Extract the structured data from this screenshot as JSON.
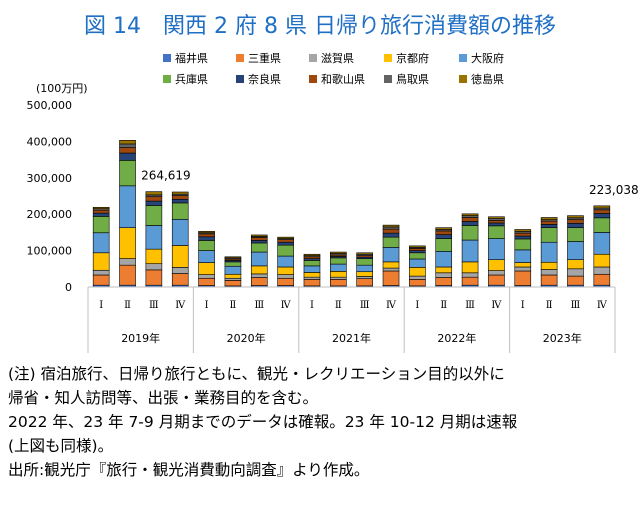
{
  "title": "図 14　関西 2 府 8 県 日帰り旅行消費額の推移",
  "chart_data": {
    "type": "bar",
    "stacked": true,
    "unit_label": "(100万円)",
    "ylim": [
      0,
      500000
    ],
    "yticks": [
      "0",
      "100,000",
      "200,000",
      "300,000",
      "400,000",
      "500,000"
    ],
    "grid": false,
    "legend_position": "top",
    "quarter_labels": [
      "Ⅰ",
      "Ⅱ",
      "Ⅲ",
      "Ⅳ",
      "Ⅰ",
      "Ⅱ",
      "Ⅲ",
      "Ⅳ",
      "Ⅰ",
      "Ⅱ",
      "Ⅲ",
      "Ⅳ",
      "Ⅰ",
      "Ⅱ",
      "Ⅲ",
      "Ⅳ",
      "Ⅰ",
      "Ⅱ",
      "Ⅲ",
      "Ⅳ"
    ],
    "year_labels": [
      "2019年",
      "2020年",
      "2021年",
      "2022年",
      "2023年"
    ],
    "annotations": [
      {
        "bar_index": 2,
        "text": "264,619"
      },
      {
        "bar_index": 19,
        "text": "223,038"
      }
    ],
    "series": [
      {
        "name": "福井県",
        "color": "#4472c4",
        "values": [
          5000,
          5000,
          5000,
          5000,
          4000,
          3000,
          4000,
          4000,
          3000,
          3000,
          3000,
          4000,
          3000,
          4000,
          5000,
          5000,
          4000,
          5000,
          5000,
          5000
        ]
      },
      {
        "name": "三重県",
        "color": "#ed7d31",
        "values": [
          28000,
          55000,
          42000,
          32000,
          20000,
          15000,
          22000,
          20000,
          18000,
          18000,
          20000,
          40000,
          18000,
          22000,
          22000,
          28000,
          40000,
          28000,
          25000,
          30000
        ]
      },
      {
        "name": "滋賀県",
        "color": "#a5a5a5",
        "values": [
          13000,
          18000,
          17000,
          17000,
          10000,
          6000,
          10000,
          10000,
          6000,
          6000,
          6000,
          8000,
          9000,
          13000,
          12000,
          12000,
          11000,
          15000,
          20000,
          20000
        ]
      },
      {
        "name": "京都府",
        "color": "#ffc000",
        "values": [
          48000,
          85000,
          40000,
          60000,
          33000,
          11000,
          22000,
          21000,
          13000,
          16000,
          13000,
          17000,
          24000,
          16000,
          30000,
          30000,
          12000,
          20000,
          25000,
          35000
        ]
      },
      {
        "name": "大阪府",
        "color": "#5b9bd5",
        "values": [
          55000,
          115000,
          65000,
          72000,
          33000,
          22000,
          38000,
          30000,
          18000,
          20000,
          18000,
          40000,
          23000,
          43000,
          60000,
          58000,
          35000,
          55000,
          50000,
          60000
        ]
      },
      {
        "name": "兵庫県",
        "color": "#70ad47",
        "values": [
          45000,
          70000,
          55000,
          45000,
          28000,
          12000,
          25000,
          30000,
          15000,
          17000,
          18000,
          28000,
          17000,
          35000,
          40000,
          35000,
          30000,
          40000,
          38000,
          40000
        ]
      },
      {
        "name": "奈良県",
        "color": "#264478",
        "values": [
          9000,
          20000,
          12000,
          10000,
          10000,
          4000,
          7000,
          8000,
          5000,
          4000,
          4000,
          11000,
          6000,
          11000,
          11000,
          8000,
          8000,
          9000,
          12000,
          12000
        ]
      },
      {
        "name": "和歌山県",
        "color": "#9e480e",
        "values": [
          8000,
          15000,
          12000,
          10000,
          8000,
          4000,
          8000,
          7000,
          5000,
          4000,
          4000,
          11000,
          6000,
          10000,
          11000,
          7000,
          8000,
          9000,
          10000,
          10000
        ]
      },
      {
        "name": "鳥取県",
        "color": "#636363",
        "values": [
          4000,
          10000,
          5000,
          4000,
          3000,
          3000,
          3000,
          3000,
          3000,
          4000,
          4000,
          6000,
          3000,
          4000,
          5000,
          5000,
          5000,
          4000,
          5000,
          5000
        ]
      },
      {
        "name": "徳島県",
        "color": "#997300",
        "values": [
          4000,
          10000,
          9000,
          6000,
          4000,
          3000,
          4000,
          4000,
          4000,
          4000,
          4000,
          5000,
          4000,
          5000,
          5000,
          5000,
          5000,
          6000,
          6000,
          6000
        ]
      }
    ]
  },
  "notes": [
    "(注) 宿泊旅行、日帰り旅行ともに、観光・レクリエーション目的以外に",
    "帰省・知人訪問等、出張・業務目的を含む。",
    "2022 年、23 年 7-9 月期までのデータは確報。23 年 10-12 月期は速報",
    "(上図も同様)。",
    "出所:観光庁『旅行・観光消費動向調査』より作成。"
  ]
}
